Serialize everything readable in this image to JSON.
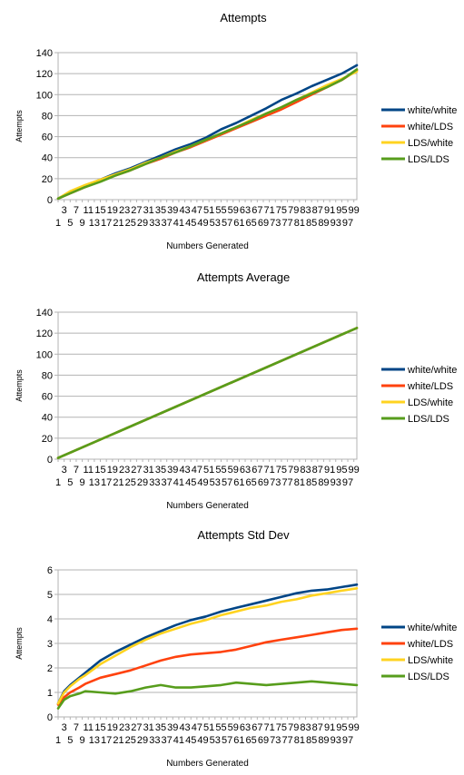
{
  "chart_data": [
    {
      "type": "line",
      "title": "Attempts",
      "xlabel": "Numbers Generated",
      "ylabel": "Attempts",
      "ylim": [
        0,
        140
      ],
      "yticks": [
        0,
        20,
        40,
        60,
        80,
        100,
        120,
        140
      ],
      "grid": true,
      "legend": "right",
      "xticks_row1": [
        "3",
        "7",
        "11",
        "15",
        "19",
        "23",
        "27",
        "31",
        "35",
        "39",
        "43",
        "47",
        "51",
        "55",
        "59",
        "63",
        "67",
        "71",
        "75",
        "79",
        "83",
        "87",
        "91",
        "95",
        "99"
      ],
      "xticks_row2": [
        "1",
        "5",
        "9",
        "13",
        "17",
        "21",
        "25",
        "29",
        "33",
        "37",
        "41",
        "45",
        "49",
        "53",
        "57",
        "61",
        "65",
        "69",
        "73",
        "77",
        "81",
        "85",
        "89",
        "93",
        "97"
      ],
      "x": [
        1,
        5,
        10,
        15,
        20,
        25,
        30,
        35,
        40,
        45,
        50,
        55,
        60,
        65,
        70,
        75,
        80,
        85,
        90,
        95,
        100
      ],
      "series": [
        {
          "name": "white/white",
          "color": "#004586",
          "values": [
            1,
            7,
            13,
            19,
            25,
            30,
            36,
            42,
            48,
            53,
            59,
            67,
            73,
            80,
            87,
            95,
            101,
            108,
            114,
            120,
            128
          ]
        },
        {
          "name": "white/LDS",
          "color": "#ff420e",
          "values": [
            1,
            6,
            12,
            18,
            23,
            28,
            34,
            39,
            45,
            50,
            56,
            62,
            68,
            74,
            80,
            86,
            93,
            100,
            107,
            114,
            123
          ]
        },
        {
          "name": "LDS/white",
          "color": "#ffd320",
          "values": [
            1,
            8,
            14,
            19,
            24,
            29,
            35,
            40,
            46,
            51,
            57,
            63,
            69,
            76,
            82,
            88,
            95,
            102,
            109,
            115,
            122
          ]
        },
        {
          "name": "LDS/LDS",
          "color": "#579d1c",
          "values": [
            1,
            6,
            12,
            17,
            23,
            28,
            34,
            40,
            45,
            51,
            57,
            63,
            69,
            75,
            82,
            88,
            95,
            101,
            107,
            114,
            124
          ]
        }
      ]
    },
    {
      "type": "line",
      "title": "Attempts Average",
      "xlabel": "Numbers Generated",
      "ylabel": "Attempts",
      "ylim": [
        0,
        140
      ],
      "yticks": [
        0,
        20,
        40,
        60,
        80,
        100,
        120,
        140
      ],
      "grid": true,
      "legend": "right",
      "xticks_row1": [
        "3",
        "7",
        "11",
        "15",
        "19",
        "23",
        "27",
        "31",
        "35",
        "39",
        "43",
        "47",
        "51",
        "55",
        "59",
        "63",
        "67",
        "71",
        "75",
        "79",
        "83",
        "87",
        "91",
        "95",
        "99"
      ],
      "xticks_row2": [
        "1",
        "5",
        "9",
        "13",
        "17",
        "21",
        "25",
        "29",
        "33",
        "37",
        "41",
        "45",
        "49",
        "53",
        "57",
        "61",
        "65",
        "69",
        "73",
        "77",
        "81",
        "85",
        "89",
        "93",
        "97"
      ],
      "x": [
        1,
        100
      ],
      "series": [
        {
          "name": "white/white",
          "color": "#004586",
          "values": [
            1.2,
            125
          ]
        },
        {
          "name": "white/LDS",
          "color": "#ff420e",
          "values": [
            1.2,
            125
          ]
        },
        {
          "name": "LDS/white",
          "color": "#ffd320",
          "values": [
            1.2,
            125
          ]
        },
        {
          "name": "LDS/LDS",
          "color": "#579d1c",
          "values": [
            1.2,
            125
          ]
        }
      ]
    },
    {
      "type": "line",
      "title": "Attempts Std Dev",
      "xlabel": "Numbers Generated",
      "ylabel": "Attempts",
      "ylim": [
        0,
        6
      ],
      "yticks": [
        0,
        1,
        2,
        3,
        4,
        5,
        6
      ],
      "grid": true,
      "legend": "right",
      "xticks_row1": [
        "3",
        "7",
        "11",
        "15",
        "19",
        "23",
        "27",
        "31",
        "35",
        "39",
        "43",
        "47",
        "51",
        "55",
        "59",
        "63",
        "67",
        "71",
        "75",
        "79",
        "83",
        "87",
        "91",
        "95",
        "99"
      ],
      "xticks_row2": [
        "1",
        "5",
        "9",
        "13",
        "17",
        "21",
        "25",
        "29",
        "33",
        "37",
        "41",
        "45",
        "49",
        "53",
        "57",
        "61",
        "65",
        "69",
        "73",
        "77",
        "81",
        "85",
        "89",
        "93",
        "97"
      ],
      "x": [
        1,
        3,
        5,
        8,
        10,
        15,
        20,
        25,
        30,
        35,
        40,
        45,
        50,
        55,
        60,
        65,
        70,
        75,
        80,
        85,
        90,
        95,
        100
      ],
      "series": [
        {
          "name": "white/white",
          "color": "#004586",
          "values": [
            0.55,
            1.05,
            1.3,
            1.6,
            1.8,
            2.3,
            2.65,
            2.95,
            3.25,
            3.5,
            3.75,
            3.95,
            4.1,
            4.3,
            4.45,
            4.6,
            4.75,
            4.9,
            5.05,
            5.15,
            5.2,
            5.3,
            5.4
          ]
        },
        {
          "name": "white/LDS",
          "color": "#ff420e",
          "values": [
            0.5,
            0.8,
            1.0,
            1.2,
            1.35,
            1.6,
            1.75,
            1.9,
            2.1,
            2.3,
            2.45,
            2.55,
            2.6,
            2.65,
            2.75,
            2.9,
            3.05,
            3.15,
            3.25,
            3.35,
            3.45,
            3.55,
            3.6
          ]
        },
        {
          "name": "LDS/white",
          "color": "#ffd320",
          "values": [
            0.55,
            1.0,
            1.25,
            1.55,
            1.7,
            2.15,
            2.5,
            2.85,
            3.15,
            3.4,
            3.6,
            3.8,
            3.95,
            4.15,
            4.3,
            4.45,
            4.55,
            4.7,
            4.8,
            4.95,
            5.05,
            5.15,
            5.25
          ]
        },
        {
          "name": "LDS/LDS",
          "color": "#579d1c",
          "values": [
            0.35,
            0.7,
            0.85,
            0.95,
            1.05,
            1.0,
            0.95,
            1.05,
            1.2,
            1.3,
            1.2,
            1.2,
            1.25,
            1.3,
            1.4,
            1.35,
            1.3,
            1.35,
            1.4,
            1.45,
            1.4,
            1.35,
            1.3
          ]
        }
      ]
    }
  ]
}
